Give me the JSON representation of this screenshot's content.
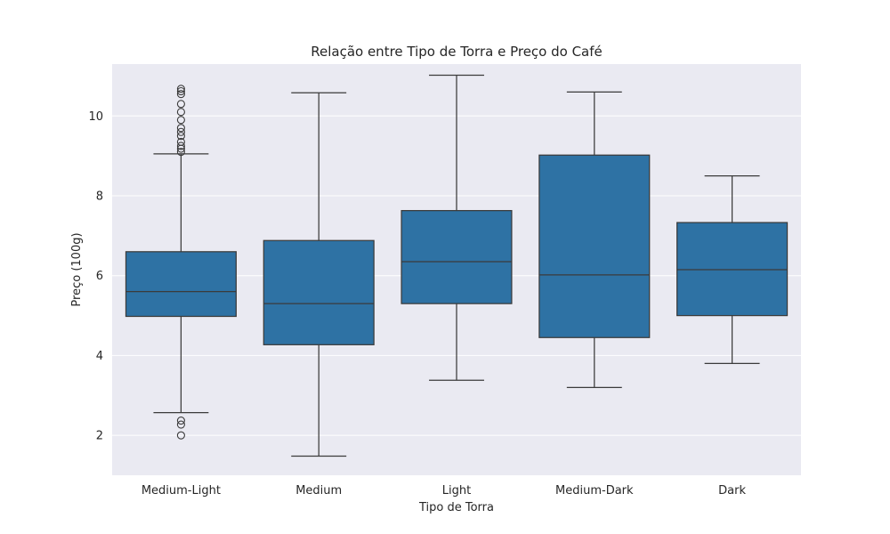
{
  "chart_data": {
    "type": "box",
    "title": "Relação entre Tipo de Torra e Preço do Café",
    "xlabel": "Tipo de Torra",
    "ylabel": "Preço (100g)",
    "ylim": [
      1.0,
      11.3
    ],
    "yticks": [
      2,
      4,
      6,
      8,
      10
    ],
    "grid": true,
    "categories": [
      "Medium-Light",
      "Medium",
      "Light",
      "Medium-Dark",
      "Dark"
    ],
    "boxes": [
      {
        "category": "Medium-Light",
        "whisker_low": 2.57,
        "q1": 4.98,
        "median": 5.6,
        "q3": 6.6,
        "whisker_high": 9.05,
        "outliers": [
          2.0,
          2.27,
          2.37,
          9.1,
          9.18,
          9.25,
          9.35,
          9.5,
          9.6,
          9.7,
          9.9,
          10.1,
          10.3,
          10.55,
          10.62,
          10.68
        ]
      },
      {
        "category": "Medium",
        "whisker_low": 1.48,
        "q1": 4.27,
        "median": 5.3,
        "q3": 6.88,
        "whisker_high": 10.58,
        "outliers": []
      },
      {
        "category": "Light",
        "whisker_low": 3.38,
        "q1": 5.3,
        "median": 6.35,
        "q3": 7.63,
        "whisker_high": 11.02,
        "outliers": []
      },
      {
        "category": "Medium-Dark",
        "whisker_low": 3.2,
        "q1": 4.45,
        "median": 6.02,
        "q3": 9.02,
        "whisker_high": 10.6,
        "outliers": []
      },
      {
        "category": "Dark",
        "whisker_low": 3.8,
        "q1": 5.0,
        "median": 6.15,
        "q3": 7.33,
        "whisker_high": 8.5,
        "outliers": []
      }
    ],
    "colors": {
      "box_fill": "#2e72a4",
      "line": "#3b3b3b",
      "plot_background": "#eaeaf2",
      "grid": "#ffffff"
    }
  }
}
